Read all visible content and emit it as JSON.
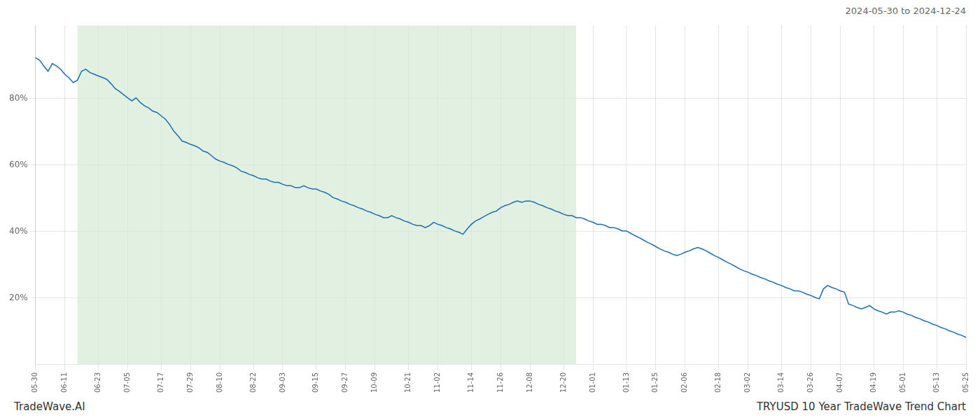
{
  "chart_data": {
    "type": "line",
    "title": "TRYUSD 10 Year TradeWave Trend Chart",
    "subtitle": "2024-05-30 to 2024-12-24",
    "annotations": [
      "TradeWave.AI"
    ],
    "color": "#1a6eb5",
    "grid": true,
    "shaded_span": [
      10,
      129
    ],
    "shaded_color": "#d4ead4",
    "ylim": [
      0.0,
      1.02
    ],
    "yticks": [
      {
        "value": 0.2,
        "label": "20%"
      },
      {
        "value": 0.4,
        "label": "40%"
      },
      {
        "value": 0.6,
        "label": "60%"
      },
      {
        "value": 0.8,
        "label": "80%"
      }
    ],
    "categories": [
      "05-30",
      null,
      null,
      null,
      null,
      null,
      null,
      "06-11",
      null,
      null,
      null,
      null,
      null,
      null,
      null,
      "06-23",
      null,
      null,
      null,
      null,
      null,
      null,
      "07-05",
      null,
      null,
      null,
      null,
      null,
      null,
      null,
      "07-17",
      null,
      null,
      null,
      null,
      null,
      null,
      "07-29",
      null,
      null,
      null,
      null,
      null,
      null,
      "08-10",
      null,
      null,
      null,
      null,
      null,
      null,
      null,
      "08-22",
      null,
      null,
      null,
      null,
      null,
      null,
      "09-03",
      null,
      null,
      null,
      null,
      null,
      null,
      null,
      "09-15",
      null,
      null,
      null,
      null,
      null,
      null,
      "09-27",
      null,
      null,
      null,
      null,
      null,
      null,
      "10-09",
      null,
      null,
      null,
      null,
      null,
      null,
      null,
      "10-21",
      null,
      null,
      null,
      null,
      null,
      null,
      "11-02",
      null,
      null,
      null,
      null,
      null,
      null,
      null,
      "11-14",
      null,
      null,
      null,
      null,
      null,
      null,
      "11-26",
      null,
      null,
      null,
      null,
      null,
      null,
      "12-08",
      null,
      null,
      null,
      null,
      null,
      null,
      null,
      "12-20",
      null,
      null,
      null,
      null,
      null,
      null,
      "01-01",
      null,
      null,
      null,
      null,
      null,
      null,
      null,
      "01-13",
      null,
      null,
      null,
      null,
      null,
      null,
      "01-25",
      null,
      null,
      null,
      null,
      null,
      null,
      "02-06",
      null,
      null,
      null,
      null,
      null,
      null,
      null,
      "02-18",
      null,
      null,
      null,
      null,
      null,
      null,
      "03-02",
      null,
      null,
      null,
      null,
      null,
      null,
      null,
      "03-14",
      null,
      null,
      null,
      null,
      null,
      null,
      "03-26",
      null,
      null,
      null,
      null,
      null,
      null,
      "04-07",
      null,
      null,
      null,
      null,
      null,
      null,
      null,
      "04-19",
      null,
      null,
      null,
      null,
      null,
      null,
      "05-01",
      null,
      null,
      null,
      null,
      null,
      null,
      null,
      "05-13",
      null,
      null,
      null,
      null,
      null,
      null,
      "05-25"
    ],
    "values": [
      0.923,
      0.915,
      0.898,
      0.882,
      0.905,
      0.898,
      0.888,
      0.873,
      0.862,
      0.848,
      0.855,
      0.882,
      0.888,
      0.878,
      0.873,
      0.868,
      0.863,
      0.858,
      0.845,
      0.83,
      0.822,
      0.812,
      0.802,
      0.793,
      0.802,
      0.788,
      0.778,
      0.772,
      0.762,
      0.758,
      0.748,
      0.738,
      0.722,
      0.702,
      0.688,
      0.672,
      0.668,
      0.662,
      0.658,
      0.652,
      0.642,
      0.638,
      0.628,
      0.618,
      0.612,
      0.608,
      0.602,
      0.598,
      0.592,
      0.582,
      0.578,
      0.572,
      0.568,
      0.562,
      0.558,
      0.558,
      0.552,
      0.548,
      0.548,
      0.542,
      0.538,
      0.538,
      0.532,
      0.532,
      0.538,
      0.532,
      0.528,
      0.528,
      0.522,
      0.518,
      0.512,
      0.502,
      0.498,
      0.492,
      0.488,
      0.482,
      0.478,
      0.472,
      0.468,
      0.462,
      0.458,
      0.452,
      0.448,
      0.442,
      0.442,
      0.448,
      0.442,
      0.438,
      0.432,
      0.428,
      0.422,
      0.418,
      0.418,
      0.412,
      0.418,
      0.428,
      0.422,
      0.418,
      0.412,
      0.408,
      0.402,
      0.398,
      0.392,
      0.408,
      0.422,
      0.432,
      0.438,
      0.445,
      0.452,
      0.458,
      0.462,
      0.472,
      0.478,
      0.482,
      0.488,
      0.492,
      0.488,
      0.492,
      0.492,
      0.488,
      0.482,
      0.478,
      0.472,
      0.468,
      0.462,
      0.458,
      0.452,
      0.448,
      0.448,
      0.442,
      0.442,
      0.438,
      0.432,
      0.428,
      0.422,
      0.422,
      0.418,
      0.412,
      0.412,
      0.408,
      0.402,
      0.402,
      0.395,
      0.388,
      0.382,
      0.375,
      0.368,
      0.362,
      0.355,
      0.348,
      0.342,
      0.338,
      0.332,
      0.328,
      0.332,
      0.338,
      0.342,
      0.348,
      0.352,
      0.348,
      0.342,
      0.335,
      0.328,
      0.322,
      0.315,
      0.308,
      0.302,
      0.295,
      0.288,
      0.282,
      0.278,
      0.272,
      0.268,
      0.262,
      0.258,
      0.252,
      0.248,
      0.242,
      0.238,
      0.232,
      0.228,
      0.222,
      0.222,
      0.218,
      0.212,
      0.208,
      0.202,
      0.198,
      0.228,
      0.238,
      0.232,
      0.228,
      0.222,
      0.218,
      0.182,
      0.178,
      0.172,
      0.168,
      0.172,
      0.178,
      0.168,
      0.162,
      0.158,
      0.152,
      0.158,
      0.158,
      0.162,
      0.158,
      0.152,
      0.148,
      0.142,
      0.138,
      0.132,
      0.128,
      0.122,
      0.118,
      0.112,
      0.108,
      0.102,
      0.098,
      0.092,
      0.088,
      0.082
    ]
  }
}
